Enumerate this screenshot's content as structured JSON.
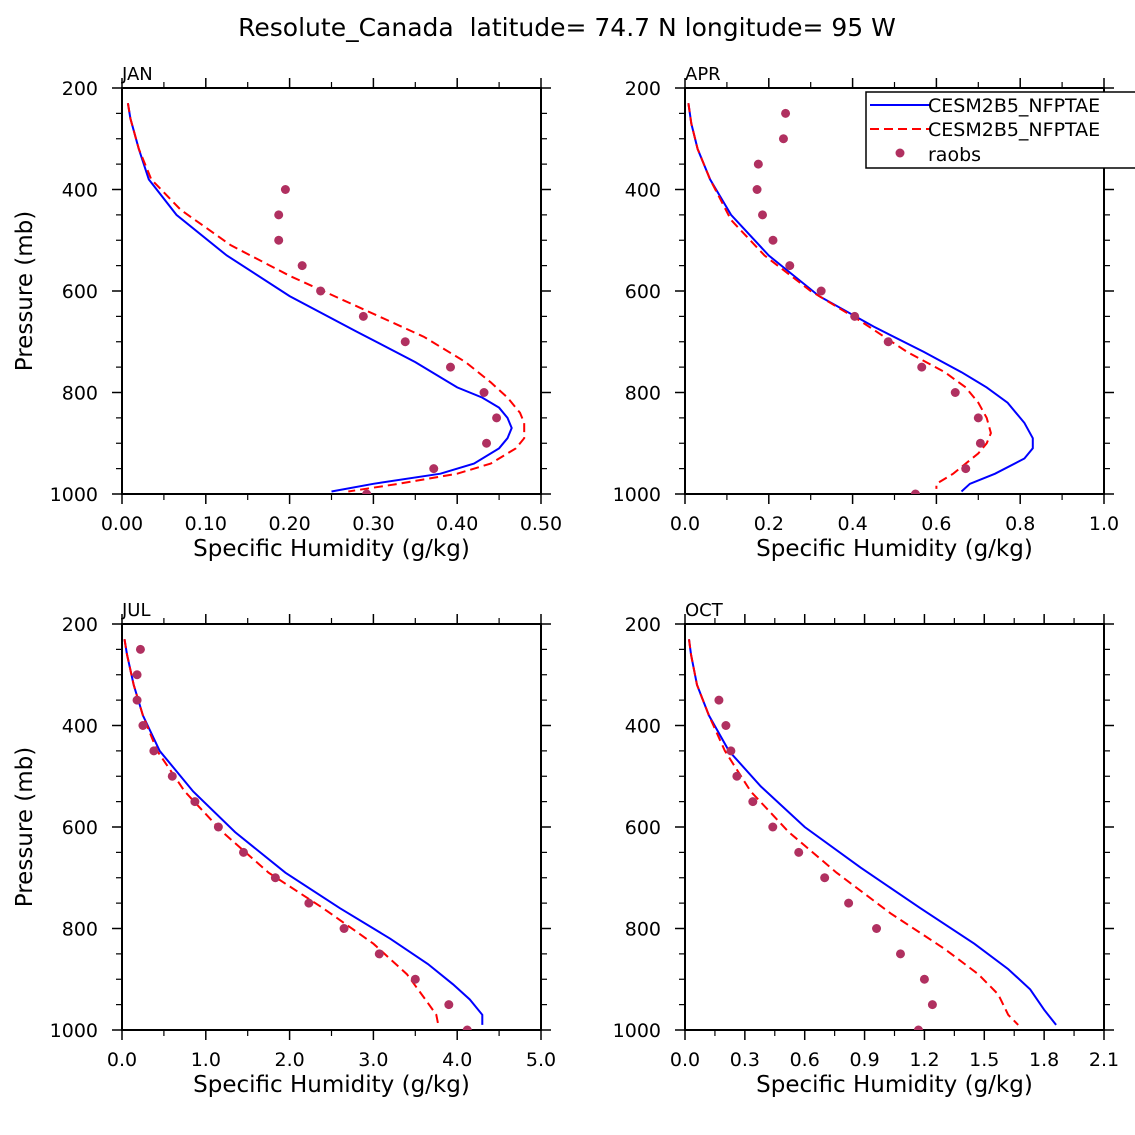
{
  "title": "Resolute_Canada  latitude= 74.7 N longitude= 95 W",
  "colors": {
    "model1": "#0000ff",
    "model2": "#ff0000",
    "obs": "#b03060",
    "axis": "#000000"
  },
  "legend": {
    "entries": [
      {
        "label": "CESM2B5_NFPTAE",
        "style": "solid"
      },
      {
        "label": "CESM2B5_NFPTAE",
        "style": "dashed"
      },
      {
        "label": "raobs",
        "style": "dot"
      }
    ]
  },
  "chart_data": [
    {
      "panel": "JAN",
      "type": "line",
      "xlabel": "Specific Humidity (g/kg)",
      "ylabel": "Pressure (mb)",
      "xlim": [
        0,
        0.5
      ],
      "ylim": [
        200,
        1000
      ],
      "xticks": [
        0,
        0.1,
        0.2,
        0.3,
        0.4,
        0.5
      ],
      "xticklabels": [
        "0.00",
        "0.10",
        "0.20",
        "0.30",
        "0.40",
        "0.50"
      ],
      "yticks": [
        200,
        400,
        600,
        800,
        1000
      ],
      "yticklabels": [
        "200",
        "400",
        "600",
        "800",
        "1000"
      ],
      "series": [
        {
          "name": "CESM2B5_NFPTAE",
          "style": "solid",
          "x": [
            0.007,
            0.01,
            0.02,
            0.032,
            0.065,
            0.125,
            0.2,
            0.28,
            0.35,
            0.4,
            0.43,
            0.45,
            0.46,
            0.465,
            0.46,
            0.45,
            0.42,
            0.38,
            0.3,
            0.25
          ],
          "y": [
            230,
            260,
            320,
            380,
            450,
            530,
            610,
            680,
            740,
            790,
            810,
            830,
            850,
            870,
            890,
            910,
            940,
            960,
            980,
            995
          ]
        },
        {
          "name": "CESM2B5_NFPTAE",
          "style": "dashed",
          "x": [
            0.007,
            0.01,
            0.02,
            0.035,
            0.07,
            0.13,
            0.2,
            0.28,
            0.36,
            0.41,
            0.44,
            0.46,
            0.475,
            0.48,
            0.48,
            0.47,
            0.44,
            0.4,
            0.33,
            0.27
          ],
          "y": [
            230,
            260,
            320,
            380,
            440,
            510,
            570,
            630,
            690,
            740,
            780,
            810,
            840,
            860,
            890,
            910,
            940,
            960,
            980,
            995
          ]
        }
      ],
      "points": {
        "name": "raobs",
        "x": [
          0.195,
          0.187,
          0.187,
          0.215,
          0.237,
          0.288,
          0.338,
          0.392,
          0.432,
          0.447,
          0.435,
          0.372,
          0.292
        ],
        "y": [
          400,
          450,
          500,
          550,
          600,
          650,
          700,
          750,
          800,
          850,
          900,
          950,
          1000
        ]
      }
    },
    {
      "panel": "APR",
      "type": "line",
      "xlabel": "Specific Humidity (g/kg)",
      "ylabel": "",
      "xlim": [
        0,
        1.0
      ],
      "ylim": [
        200,
        1000
      ],
      "xticks": [
        0,
        0.2,
        0.4,
        0.6,
        0.8,
        1.0
      ],
      "xticklabels": [
        "0.0",
        "0.2",
        "0.4",
        "0.6",
        "0.8",
        "1.0"
      ],
      "yticks": [
        200,
        400,
        600,
        800,
        1000
      ],
      "yticklabels": [
        "200",
        "400",
        "600",
        "800",
        "1000"
      ],
      "series": [
        {
          "name": "CESM2B5_NFPTAE",
          "style": "solid",
          "x": [
            0.008,
            0.015,
            0.03,
            0.06,
            0.11,
            0.2,
            0.32,
            0.45,
            0.57,
            0.66,
            0.72,
            0.77,
            0.81,
            0.83,
            0.83,
            0.81,
            0.74,
            0.68,
            0.66
          ],
          "y": [
            230,
            270,
            320,
            380,
            450,
            530,
            610,
            670,
            720,
            760,
            790,
            820,
            860,
            890,
            910,
            930,
            960,
            980,
            995
          ]
        },
        {
          "name": "CESM2B5_NFPTAE",
          "style": "dashed",
          "x": [
            0.008,
            0.015,
            0.03,
            0.06,
            0.11,
            0.19,
            0.3,
            0.42,
            0.53,
            0.62,
            0.67,
            0.7,
            0.72,
            0.73,
            0.72,
            0.7,
            0.64,
            0.6,
            0.6
          ],
          "y": [
            230,
            270,
            320,
            380,
            460,
            530,
            600,
            660,
            720,
            760,
            790,
            820,
            850,
            880,
            900,
            920,
            960,
            980,
            990
          ]
        }
      ],
      "points": {
        "name": "raobs",
        "x": [
          0.24,
          0.235,
          0.175,
          0.172,
          0.185,
          0.21,
          0.25,
          0.325,
          0.405,
          0.485,
          0.565,
          0.645,
          0.7,
          0.705,
          0.67,
          0.55
        ],
        "y": [
          250,
          300,
          350,
          400,
          450,
          500,
          550,
          600,
          650,
          700,
          750,
          800,
          850,
          900,
          950,
          1000
        ]
      }
    },
    {
      "panel": "JUL",
      "type": "line",
      "xlabel": "Specific Humidity (g/kg)",
      "ylabel": "Pressure (mb)",
      "xlim": [
        0,
        5.0
      ],
      "ylim": [
        200,
        1000
      ],
      "xticks": [
        0,
        1,
        2,
        3,
        4,
        5
      ],
      "xticklabels": [
        "0.0",
        "1.0",
        "2.0",
        "3.0",
        "4.0",
        "5.0"
      ],
      "yticks": [
        200,
        400,
        600,
        800,
        1000
      ],
      "yticklabels": [
        "200",
        "400",
        "600",
        "800",
        "1000"
      ],
      "series": [
        {
          "name": "CESM2B5_NFPTAE",
          "style": "solid",
          "x": [
            0.03,
            0.06,
            0.14,
            0.25,
            0.45,
            0.85,
            1.35,
            1.95,
            2.6,
            3.2,
            3.65,
            3.95,
            4.15,
            4.3,
            4.3
          ],
          "y": [
            230,
            260,
            320,
            380,
            450,
            530,
            610,
            690,
            760,
            820,
            870,
            910,
            940,
            970,
            990
          ]
        },
        {
          "name": "CESM2B5_NFPTAE",
          "style": "dashed",
          "x": [
            0.03,
            0.06,
            0.14,
            0.25,
            0.42,
            0.75,
            1.2,
            1.75,
            2.4,
            3.0,
            3.4,
            3.62,
            3.75,
            3.78
          ],
          "y": [
            230,
            260,
            320,
            380,
            450,
            530,
            610,
            690,
            760,
            830,
            890,
            940,
            970,
            995
          ]
        }
      ],
      "points": {
        "name": "raobs",
        "x": [
          0.22,
          0.18,
          0.18,
          0.25,
          0.38,
          0.6,
          0.87,
          1.15,
          1.45,
          1.83,
          2.23,
          2.65,
          3.07,
          3.5,
          3.9,
          4.12
        ],
        "y": [
          250,
          300,
          350,
          400,
          450,
          500,
          550,
          600,
          650,
          700,
          750,
          800,
          850,
          900,
          950,
          1000
        ]
      }
    },
    {
      "panel": "OCT",
      "type": "line",
      "xlabel": "Specific Humidity (g/kg)",
      "ylabel": "",
      "xlim": [
        0,
        2.1
      ],
      "ylim": [
        200,
        1000
      ],
      "xticks": [
        0,
        0.3,
        0.6,
        0.9,
        1.2,
        1.5,
        1.8,
        2.1
      ],
      "xticklabels": [
        "0.0",
        "0.3",
        "0.6",
        "0.9",
        "1.2",
        "1.5",
        "1.8",
        "2.1"
      ],
      "yticks": [
        200,
        400,
        600,
        800,
        1000
      ],
      "yticklabels": [
        "200",
        "400",
        "600",
        "800",
        "1000"
      ],
      "series": [
        {
          "name": "CESM2B5_NFPTAE",
          "style": "solid",
          "x": [
            0.02,
            0.03,
            0.06,
            0.12,
            0.22,
            0.38,
            0.6,
            0.88,
            1.18,
            1.45,
            1.62,
            1.73,
            1.8,
            1.86
          ],
          "y": [
            230,
            260,
            320,
            380,
            450,
            520,
            600,
            680,
            760,
            830,
            880,
            920,
            960,
            990
          ]
        },
        {
          "name": "CESM2B5_NFPTAE",
          "style": "dashed",
          "x": [
            0.02,
            0.03,
            0.06,
            0.12,
            0.2,
            0.33,
            0.52,
            0.76,
            1.03,
            1.3,
            1.47,
            1.57,
            1.62,
            1.67
          ],
          "y": [
            230,
            260,
            320,
            380,
            450,
            530,
            610,
            690,
            770,
            840,
            890,
            930,
            970,
            990
          ]
        }
      ],
      "points": {
        "name": "raobs",
        "x": [
          0.17,
          0.205,
          0.23,
          0.26,
          0.34,
          0.44,
          0.57,
          0.7,
          0.82,
          0.96,
          1.08,
          1.2,
          1.24,
          1.17
        ],
        "y": [
          350,
          400,
          450,
          500,
          550,
          600,
          650,
          700,
          750,
          800,
          850,
          900,
          950,
          1000
        ]
      }
    }
  ]
}
